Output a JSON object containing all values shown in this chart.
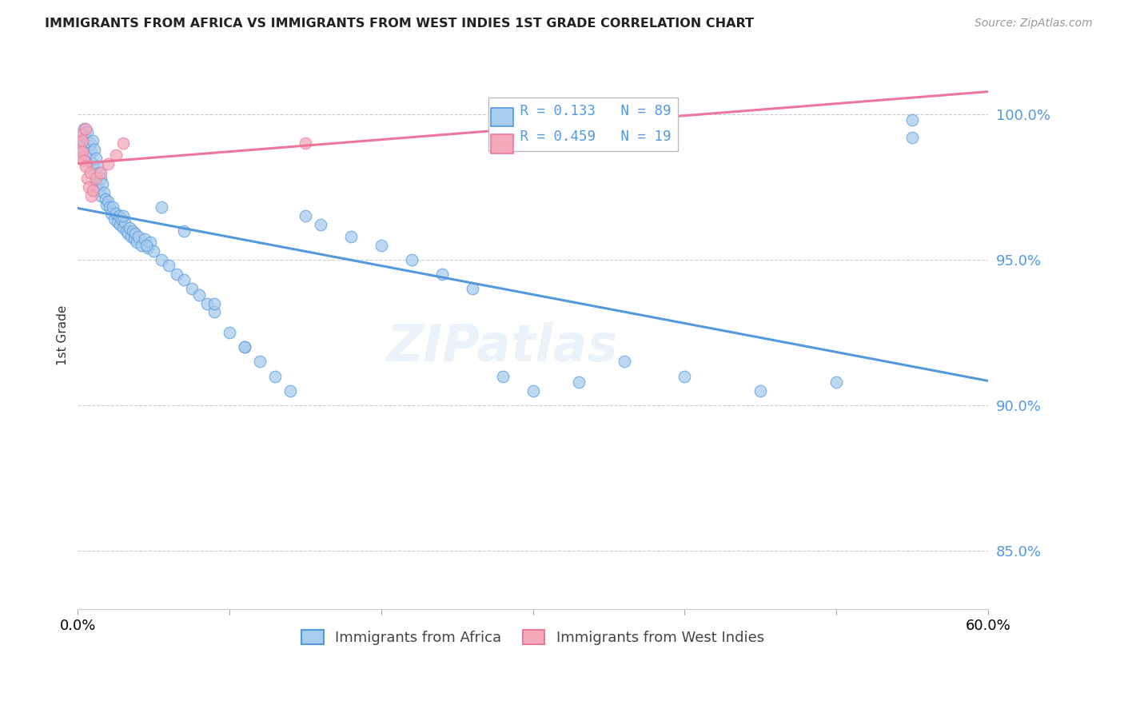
{
  "title": "IMMIGRANTS FROM AFRICA VS IMMIGRANTS FROM WEST INDIES 1ST GRADE CORRELATION CHART",
  "source": "Source: ZipAtlas.com",
  "ylabel": "1st Grade",
  "yticks": [
    85.0,
    90.0,
    95.0,
    100.0
  ],
  "ytick_labels": [
    "85.0%",
    "90.0%",
    "95.0%",
    "100.0%"
  ],
  "xlim": [
    0.0,
    60.0
  ],
  "ylim": [
    83.0,
    101.8
  ],
  "legend1_label": "Immigrants from Africa",
  "legend2_label": "Immigrants from West Indies",
  "r_africa": 0.133,
  "n_africa": 89,
  "r_westindies": 0.459,
  "n_westindies": 19,
  "africa_color": "#A8CCEE",
  "westindies_color": "#F4AABB",
  "africa_line_color": "#5599DD",
  "westindies_line_color": "#EE7799",
  "africa_x": [
    0.2,
    0.3,
    0.3,
    0.4,
    0.4,
    0.5,
    0.5,
    0.6,
    0.7,
    0.8,
    0.8,
    0.9,
    1.0,
    1.0,
    1.1,
    1.1,
    1.2,
    1.2,
    1.3,
    1.3,
    1.4,
    1.4,
    1.5,
    1.5,
    1.6,
    1.7,
    1.8,
    1.9,
    2.0,
    2.1,
    2.2,
    2.3,
    2.4,
    2.5,
    2.6,
    2.7,
    2.8,
    2.9,
    3.0,
    3.1,
    3.2,
    3.3,
    3.4,
    3.5,
    3.6,
    3.7,
    3.8,
    3.9,
    4.0,
    4.2,
    4.4,
    4.6,
    4.8,
    5.0,
    5.5,
    6.0,
    6.5,
    7.0,
    7.5,
    8.0,
    8.5,
    9.0,
    10.0,
    11.0,
    12.0,
    13.0,
    14.0,
    15.0,
    16.0,
    18.0,
    20.0,
    22.0,
    24.0,
    26.0,
    28.0,
    30.0,
    33.0,
    36.0,
    40.0,
    45.0,
    50.0,
    55.0,
    3.0,
    4.5,
    5.5,
    7.0,
    9.0,
    11.0,
    55.0
  ],
  "africa_y": [
    99.1,
    99.3,
    98.8,
    99.5,
    99.0,
    99.2,
    98.6,
    99.4,
    98.9,
    99.0,
    98.4,
    98.7,
    99.1,
    98.3,
    98.8,
    97.9,
    98.5,
    97.7,
    98.2,
    97.5,
    98.0,
    97.4,
    97.8,
    97.2,
    97.6,
    97.3,
    97.1,
    96.9,
    97.0,
    96.8,
    96.6,
    96.8,
    96.4,
    96.6,
    96.3,
    96.5,
    96.2,
    96.4,
    96.1,
    96.3,
    96.0,
    95.9,
    96.1,
    95.8,
    96.0,
    95.7,
    95.9,
    95.6,
    95.8,
    95.5,
    95.7,
    95.4,
    95.6,
    95.3,
    95.0,
    94.8,
    94.5,
    94.3,
    94.0,
    93.8,
    93.5,
    93.2,
    92.5,
    92.0,
    91.5,
    91.0,
    90.5,
    96.5,
    96.2,
    95.8,
    95.5,
    95.0,
    94.5,
    94.0,
    91.0,
    90.5,
    90.8,
    91.5,
    91.0,
    90.5,
    90.8,
    99.2,
    96.5,
    95.5,
    96.8,
    96.0,
    93.5,
    92.0,
    99.8
  ],
  "westindies_x": [
    0.1,
    0.2,
    0.2,
    0.3,
    0.3,
    0.4,
    0.5,
    0.5,
    0.6,
    0.7,
    0.8,
    0.9,
    1.0,
    1.2,
    1.5,
    2.0,
    2.5,
    3.0,
    15.0
  ],
  "westindies_y": [
    98.8,
    99.3,
    98.5,
    99.1,
    98.7,
    98.4,
    98.2,
    99.5,
    97.8,
    97.5,
    98.0,
    97.2,
    97.4,
    97.8,
    98.0,
    98.3,
    98.6,
    99.0,
    99.0
  ]
}
